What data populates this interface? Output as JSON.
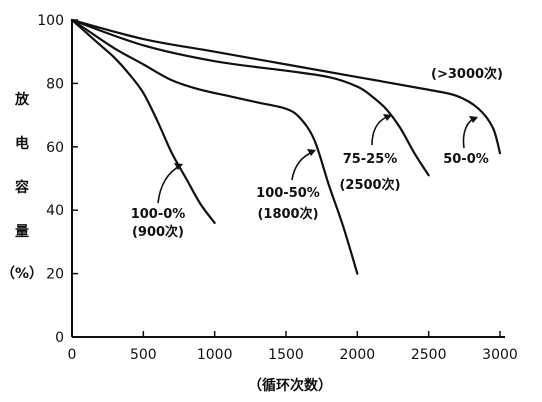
{
  "chart_data": {
    "type": "line",
    "xlabel": "（循环次数）",
    "ylabel_chars": [
      "放",
      "电",
      "容",
      "量",
      "（%）"
    ],
    "xlim": [
      0,
      3000
    ],
    "ylim": [
      0,
      100
    ],
    "xticks": [
      0,
      500,
      1000,
      1500,
      2000,
      2500,
      3000
    ],
    "yticks": [
      0,
      20,
      40,
      60,
      80,
      100
    ],
    "grid": false,
    "series": [
      {
        "name": "100-0% (900次)",
        "label_lines": [
          "100-0%",
          "(900次)"
        ],
        "points": [
          [
            0,
            100
          ],
          [
            100,
            96
          ],
          [
            200,
            92
          ],
          [
            300,
            88
          ],
          [
            400,
            83
          ],
          [
            500,
            77
          ],
          [
            600,
            68
          ],
          [
            700,
            58
          ],
          [
            800,
            50
          ],
          [
            900,
            42
          ],
          [
            1000,
            36
          ]
        ]
      },
      {
        "name": "100-50% (1800次)",
        "label_lines": [
          "100-50%",
          "(1800次)"
        ],
        "points": [
          [
            0,
            100
          ],
          [
            100,
            97
          ],
          [
            300,
            91
          ],
          [
            500,
            86
          ],
          [
            700,
            81
          ],
          [
            900,
            78
          ],
          [
            1100,
            76
          ],
          [
            1300,
            74
          ],
          [
            1500,
            72
          ],
          [
            1600,
            69
          ],
          [
            1700,
            62
          ],
          [
            1800,
            48
          ],
          [
            1900,
            35
          ],
          [
            2000,
            20
          ]
        ]
      },
      {
        "name": "75-25% (2500次)",
        "label_lines": [
          "75-25%",
          "(2500次)"
        ],
        "points": [
          [
            0,
            100
          ],
          [
            500,
            92
          ],
          [
            1000,
            87
          ],
          [
            1500,
            84
          ],
          [
            1800,
            82
          ],
          [
            2000,
            79
          ],
          [
            2100,
            76
          ],
          [
            2200,
            72
          ],
          [
            2300,
            66
          ],
          [
            2400,
            58
          ],
          [
            2500,
            51
          ]
        ]
      },
      {
        "name": "50-0% (>3000次)",
        "label_lines": [
          "50-0%",
          "(>3000次)"
        ],
        "points": [
          [
            0,
            100
          ],
          [
            500,
            94
          ],
          [
            1000,
            90
          ],
          [
            1500,
            86
          ],
          [
            2000,
            82
          ],
          [
            2500,
            78
          ],
          [
            2700,
            76
          ],
          [
            2850,
            72
          ],
          [
            2950,
            66
          ],
          [
            3000,
            58
          ]
        ]
      }
    ]
  }
}
